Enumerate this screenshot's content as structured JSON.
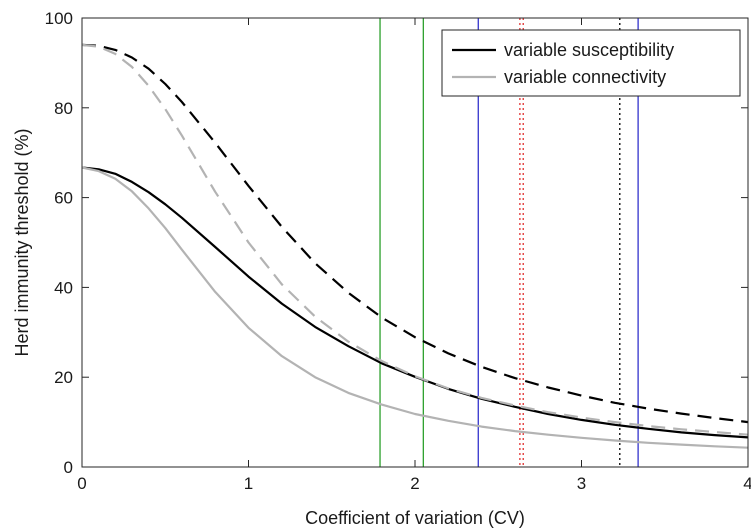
{
  "chart_data": {
    "type": "line",
    "xlabel": "Coefficient of variation (CV)",
    "ylabel": "Herd immunity threshold (%)",
    "xlim": [
      0,
      4
    ],
    "ylim": [
      0,
      100
    ],
    "x_ticks": [
      0,
      1,
      2,
      3,
      4
    ],
    "y_ticks": [
      0,
      20,
      40,
      60,
      80,
      100
    ],
    "grid": false,
    "legend_position": "top-right",
    "legend": [
      {
        "label": "variable susceptibility",
        "color": "#000000"
      },
      {
        "label": "variable connectivity",
        "color": "#b3b3b3"
      }
    ],
    "vertical_lines": [
      {
        "x": 1.79,
        "color": "#2ca02c",
        "style": "solid"
      },
      {
        "x": 2.05,
        "color": "#2ca02c",
        "style": "solid"
      },
      {
        "x": 2.38,
        "color": "#3333cc",
        "style": "solid"
      },
      {
        "x": 3.34,
        "color": "#3333cc",
        "style": "solid"
      },
      {
        "x": 2.63,
        "color": "#e03030",
        "style": "dotted"
      },
      {
        "x": 2.65,
        "color": "#e03030",
        "style": "dotted"
      },
      {
        "x": 3.23,
        "color": "#000000",
        "style": "dotted"
      }
    ],
    "series": [
      {
        "name": "variable susceptibility",
        "color": "#000000",
        "style": "solid",
        "x": [
          0,
          0.1,
          0.2,
          0.3,
          0.4,
          0.5,
          0.6,
          0.8,
          1.0,
          1.2,
          1.4,
          1.6,
          1.8,
          2.0,
          2.2,
          2.4,
          2.6,
          2.8,
          3.0,
          3.2,
          3.4,
          3.6,
          3.8,
          4.0
        ],
        "y": [
          66.7,
          66.3,
          65.3,
          63.5,
          61.2,
          58.5,
          55.5,
          49.0,
          42.4,
          36.4,
          31.2,
          26.9,
          23.1,
          20.1,
          17.4,
          15.2,
          13.4,
          11.8,
          10.5,
          9.4,
          8.5,
          7.7,
          7.1,
          6.6
        ]
      },
      {
        "name": "variable connectivity",
        "color": "#b3b3b3",
        "style": "solid",
        "x": [
          0,
          0.1,
          0.2,
          0.3,
          0.4,
          0.5,
          0.6,
          0.8,
          1.0,
          1.2,
          1.4,
          1.6,
          1.8,
          2.0,
          2.2,
          2.4,
          2.6,
          2.8,
          3.0,
          3.2,
          3.4,
          3.6,
          3.8,
          4.0
        ],
        "y": [
          66.7,
          65.9,
          64.2,
          61.4,
          57.6,
          53.2,
          48.4,
          39.0,
          31.0,
          24.7,
          20.0,
          16.5,
          13.9,
          11.8,
          10.3,
          9.0,
          8.0,
          7.2,
          6.5,
          5.9,
          5.4,
          5.0,
          4.6,
          4.3
        ]
      },
      {
        "color": "#000000",
        "style": "dashed",
        "x": [
          0,
          0.1,
          0.2,
          0.3,
          0.4,
          0.5,
          0.6,
          0.8,
          1.0,
          1.2,
          1.4,
          1.6,
          1.8,
          2.0,
          2.2,
          2.4,
          2.6,
          2.8,
          3.0,
          3.2,
          3.4,
          3.6,
          3.8,
          4.0
        ],
        "y": [
          94.0,
          93.8,
          92.9,
          91.2,
          88.7,
          85.3,
          81.3,
          72.2,
          62.6,
          53.5,
          45.4,
          38.8,
          33.3,
          28.9,
          25.3,
          22.3,
          19.8,
          17.7,
          15.9,
          14.3,
          13.0,
          11.9,
          10.9,
          10.0
        ]
      },
      {
        "color": "#b3b3b3",
        "style": "dashed",
        "x": [
          0,
          0.1,
          0.2,
          0.3,
          0.4,
          0.5,
          0.6,
          0.8,
          1.0,
          1.2,
          1.4,
          1.6,
          1.8,
          2.0,
          2.2,
          2.4,
          2.6,
          2.8,
          3.0,
          3.2,
          3.4,
          3.6,
          3.8,
          4.0
        ],
        "y": [
          94.0,
          93.6,
          92.0,
          89.1,
          84.9,
          79.7,
          73.8,
          61.3,
          50.0,
          40.7,
          33.5,
          27.9,
          23.6,
          20.2,
          17.5,
          15.4,
          13.7,
          12.2,
          11.0,
          10.0,
          9.1,
          8.4,
          7.8,
          7.2
        ]
      }
    ]
  }
}
